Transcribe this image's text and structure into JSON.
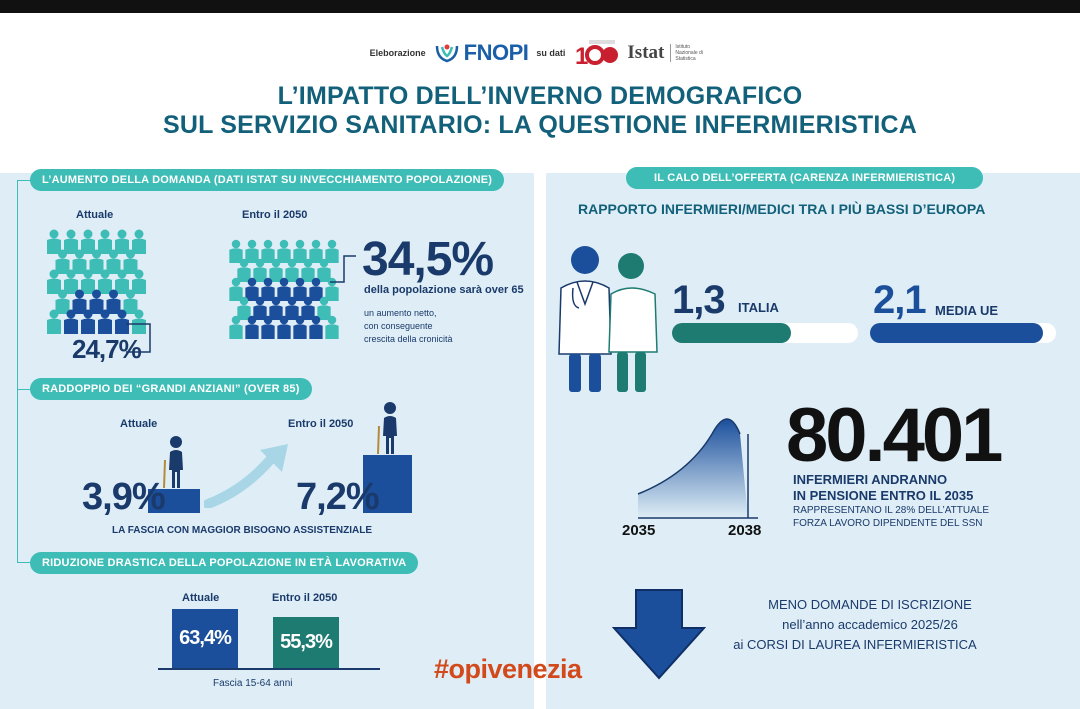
{
  "credits": {
    "elaborazione": "Eleborazione",
    "fnopi": "FNOPI",
    "su_dati": "su dati",
    "istat": "Istat",
    "istat_sub": "Istituto Nazionale di Statistica"
  },
  "title": {
    "line1": "L’IMPATTO DELL’INVERNO DEMOGRAFICO",
    "line2": "SUL SERVIZIO SANITARIO: LA QUESTIONE INFERMIERISTICA"
  },
  "left": {
    "section1": {
      "pill": "L’AUMENTO DELLA DOMANDA (DATI ISTAT SU INVECCHIAMENTO POPOLAZIONE)",
      "label_current": "Attuale",
      "label_2050": "Entro il 2050",
      "current_value": "24,7%",
      "future_value": "34,5%",
      "future_caption": "della popolazione sarà over 65",
      "note_line1": "un aumento netto,",
      "note_line2": "con conseguente",
      "note_line3": "crescita della cronicità"
    },
    "section2": {
      "pill": "RADDOPPIO DEI “GRANDI ANZIANI” (OVER 85)",
      "label_current": "Attuale",
      "label_2050": "Entro il 2050",
      "current_value": "3,9%",
      "future_value": "7,2%",
      "caption": "LA FASCIA CON MAGGIOR BISOGNO ASSISTENZIALE"
    },
    "section3": {
      "pill": "RIDUZIONE DRASTICA DELLA POPOLAZIONE IN ETÀ LAVORATIVA",
      "label_current": "Attuale",
      "label_2050": "Entro il 2050",
      "current_value": "63,4%",
      "future_value": "55,3%",
      "axis_label": "Fascia 15-64 anni"
    }
  },
  "right": {
    "pill": "IL CALO DELL’OFFERTA (CARENZA INFERMIERISTICA)",
    "subtitle": "RAPPORTO INFERMIERI/MEDICI TRA I PIÙ BASSI D’EUROPA",
    "italia_value": "1,3",
    "italia_label": "ITALIA",
    "italia_fill": 0.64,
    "ue_value": "2,1",
    "ue_label": "MEDIA UE",
    "ue_fill": 0.93,
    "retire_number": "80.401",
    "retire_line1": "INFERMIERI ANDRANNO",
    "retire_line2": "IN PENSIONE ENTRO IL 2035",
    "retire_sub1": "RAPPRESENTANO IL 28% DELL’ATTUALE",
    "retire_sub2": "FORZA LAVORO DIPENDENTE DEL SSN",
    "year_start": "2035",
    "year_end": "2038",
    "enroll_line1": "MENO DOMANDE DI ISCRIZIONE",
    "enroll_line2": "nell’anno accademico 2025/26",
    "enroll_line3": "ai CORSI DI LAUREA INFERMIERISTICA"
  },
  "hashtag": "#opivenezia",
  "colors": {
    "teal": "#3ebcb6",
    "dark_teal": "#1e7b72",
    "navy": "#1a3a6b",
    "blue": "#1b4f9c",
    "title": "#12607a",
    "hashtag": "#d2491c",
    "panel": "#dfeef6"
  }
}
